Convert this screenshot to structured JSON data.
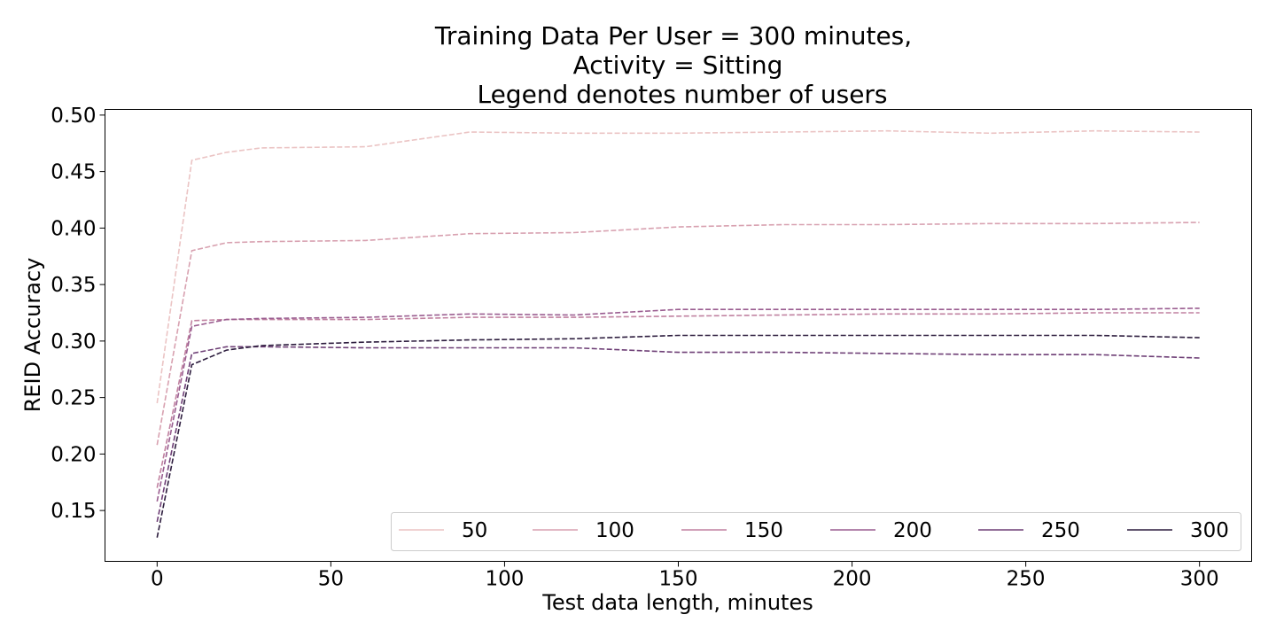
{
  "chart_data": {
    "type": "line",
    "title_lines": [
      "Training Data Per User = 300 minutes,",
      "Activity = Sitting",
      "Legend denotes number of users"
    ],
    "xlabel": "Test data length, minutes",
    "ylabel": "REID Accuracy",
    "xlim": [
      -15,
      315
    ],
    "ylim": [
      0.105,
      0.505
    ],
    "xticks": [
      0,
      50,
      100,
      150,
      200,
      250,
      300
    ],
    "yticks": [
      0.15,
      0.2,
      0.25,
      0.3,
      0.35,
      0.4,
      0.45,
      0.5
    ],
    "xtick_labels": [
      "0",
      "50",
      "100",
      "150",
      "200",
      "250",
      "300"
    ],
    "ytick_labels": [
      "0.15",
      "0.20",
      "0.25",
      "0.30",
      "0.35",
      "0.40",
      "0.45",
      "0.50"
    ],
    "line_style": "dashed",
    "grid": false,
    "legend_position": "bottom-right",
    "x": [
      0,
      10,
      20,
      30,
      60,
      90,
      120,
      150,
      180,
      210,
      240,
      270,
      300
    ],
    "series": [
      {
        "name": "50",
        "color": "#ebc4c4",
        "values": [
          0.245,
          0.46,
          0.467,
          0.471,
          0.472,
          0.485,
          0.484,
          0.484,
          0.485,
          0.486,
          0.484,
          0.486,
          0.485
        ]
      },
      {
        "name": "100",
        "color": "#d8a1b0",
        "values": [
          0.208,
          0.38,
          0.387,
          0.388,
          0.389,
          0.395,
          0.396,
          0.401,
          0.403,
          0.403,
          0.404,
          0.404,
          0.405
        ]
      },
      {
        "name": "150",
        "color": "#c081a0",
        "values": [
          0.17,
          0.318,
          0.319,
          0.319,
          0.319,
          0.321,
          0.321,
          0.322,
          0.323,
          0.324,
          0.324,
          0.325,
          0.325
        ]
      },
      {
        "name": "200",
        "color": "#9a5d90",
        "values": [
          0.158,
          0.313,
          0.319,
          0.32,
          0.321,
          0.324,
          0.323,
          0.328,
          0.328,
          0.328,
          0.328,
          0.328,
          0.329
        ]
      },
      {
        "name": "250",
        "color": "#6e3f76",
        "values": [
          0.14,
          0.289,
          0.295,
          0.295,
          0.294,
          0.294,
          0.294,
          0.29,
          0.29,
          0.289,
          0.288,
          0.288,
          0.285
        ]
      },
      {
        "name": "300",
        "color": "#2d1d3e",
        "values": [
          0.126,
          0.279,
          0.292,
          0.296,
          0.299,
          0.301,
          0.302,
          0.305,
          0.305,
          0.305,
          0.305,
          0.305,
          0.303
        ]
      }
    ]
  }
}
